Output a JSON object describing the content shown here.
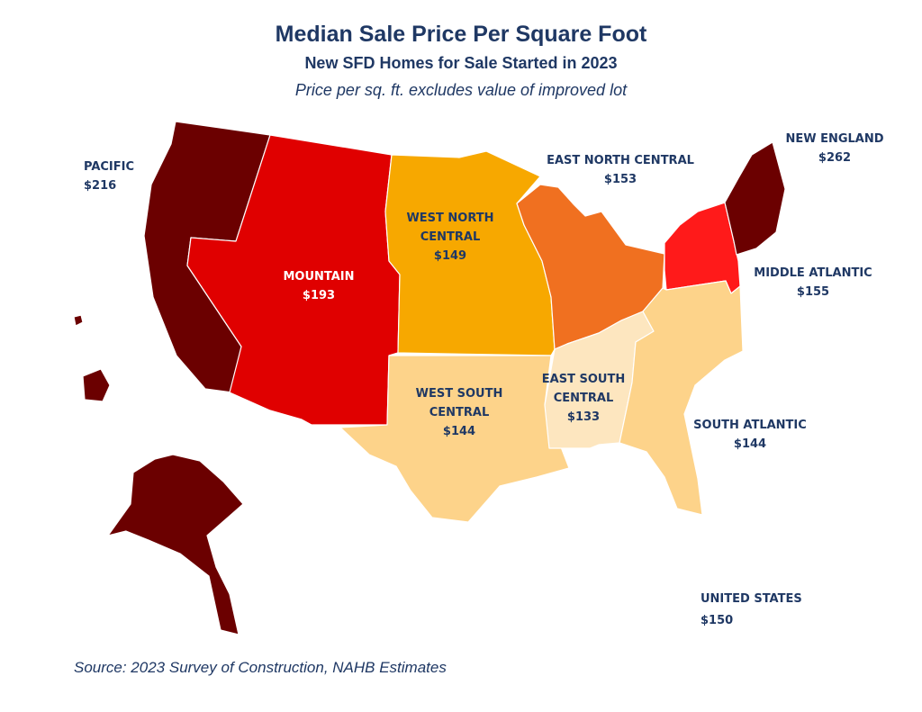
{
  "title": "Median Sale Price Per Square Foot",
  "subtitle": "New SFD Homes for Sale Started in 2023",
  "note": "Price per sq. ft. excludes value of improved lot",
  "source": "Source: 2023 Survey of Construction, NAHB Estimates",
  "colors": {
    "pacific": "#6b0000",
    "new_england": "#6b0000",
    "mountain": "#e00000",
    "middle_atlantic": "#ff1a1a",
    "west_north_central": "#f7a800",
    "east_north_central": "#f07020",
    "west_south_central": "#fdd38a",
    "south_atlantic": "#fdd38a",
    "east_south_central": "#fde6bf",
    "border": "#ffffff"
  },
  "regions": [
    {
      "id": "pacific",
      "name": "PACIFIC",
      "value": "$216",
      "price": 216
    },
    {
      "id": "mountain",
      "name": "MOUNTAIN",
      "value": "$193",
      "price": 193
    },
    {
      "id": "west_north_central",
      "name": "WEST NORTH CENTRAL",
      "name_lines": [
        "WEST NORTH",
        "CENTRAL"
      ],
      "value": "$149",
      "price": 149
    },
    {
      "id": "east_north_central",
      "name": "EAST NORTH CENTRAL",
      "value": "$153",
      "price": 153
    },
    {
      "id": "new_england",
      "name": "NEW ENGLAND",
      "value": "$262",
      "price": 262
    },
    {
      "id": "middle_atlantic",
      "name": "MIDDLE ATLANTIC",
      "value": "$155",
      "price": 155
    },
    {
      "id": "west_south_central",
      "name": "WEST SOUTH CENTRAL",
      "name_lines": [
        "WEST SOUTH",
        "CENTRAL"
      ],
      "value": "$144",
      "price": 144
    },
    {
      "id": "east_south_central",
      "name": "EAST SOUTH CENTRAL",
      "name_lines": [
        "EAST SOUTH",
        "CENTRAL"
      ],
      "value": "$133",
      "price": 133
    },
    {
      "id": "south_atlantic",
      "name": "SOUTH ATLANTIC",
      "value": "$144",
      "price": 144
    }
  ],
  "national": {
    "name": "UNITED STATES",
    "value": "$150",
    "price": 150
  }
}
